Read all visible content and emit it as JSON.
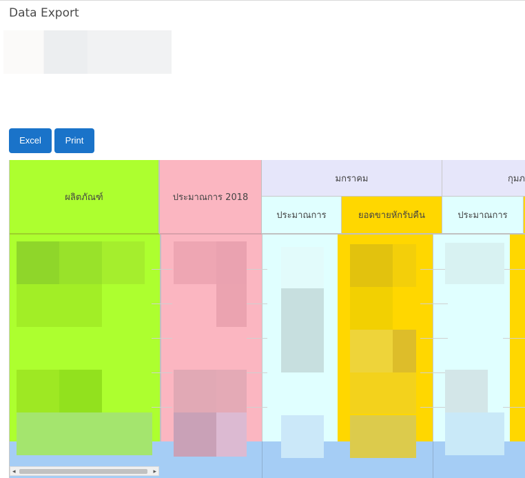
{
  "page": {
    "title": "Data Export"
  },
  "toolbar": {
    "excel_label": "Excel",
    "print_label": "Print"
  },
  "table": {
    "headers": {
      "product": "ผลิตภัณฑ์",
      "estimate_2018": "ประมาณการ 2018",
      "month_jan": "มกราคม",
      "month_feb_partial": "กุมภ",
      "sub_estimate": "ประมาณการ",
      "sub_net_sales": "ยอดขายหักรับคืน",
      "sub_estimate_2": "ประมาณการ"
    },
    "colors": {
      "product_col": "#adff2f",
      "estimate_col": "#fbb6c1",
      "month_header": "#e6e6fa",
      "estimate_sub": "#e0ffff",
      "net_sales_sub": "#ffd700",
      "footer_row": "#a5cdf5"
    }
  },
  "scrollbar": {
    "left_arrow": "◂",
    "right_arrow": "▸"
  }
}
